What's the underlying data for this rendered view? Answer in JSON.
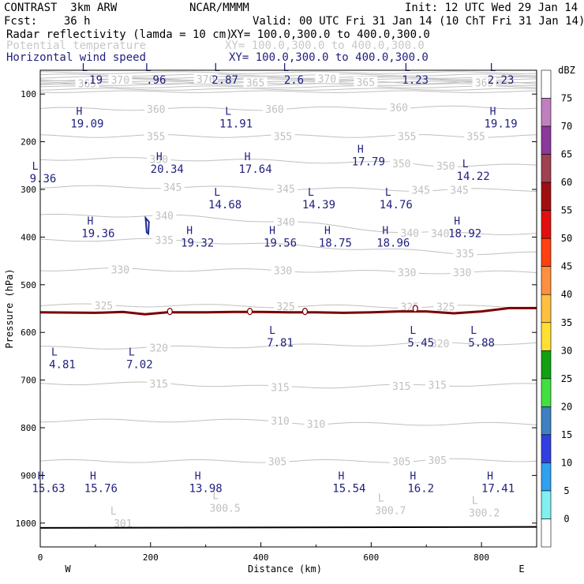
{
  "header": {
    "title_left": "CONTRAST  3km ARW",
    "source": "NCAR/MMMM",
    "init": "Init: 12 UTC Wed 29 Jan 14",
    "forecast": "Fcst:    36 h",
    "valid": "Valid: 00 UTC Fri 31 Jan 14 (10 ChT Fri 31 Jan 14)",
    "field1": "Radar reflectivity (lamda = 10 cm)",
    "field1_xy": "XY= 100.0,300.0 to 400.0,300.0",
    "field2": "Potential temperature",
    "field2_xy": "XY= 100.0,300.0 to 400.0,300.0",
    "field3": "Horizontal wind speed",
    "field3_xy": "XY= 100.0,300.0 to 400.0,300.0"
  },
  "colors": {
    "theta_contour": "#c0c0c0",
    "wind_label": "#202080",
    "freezing_line": "#7a0000",
    "ground": "#000000"
  },
  "chart_data": {
    "type": "cross-section",
    "xlabel": "Distance (km)",
    "ylabel": "Pressure (hPa)",
    "xlim": [
      0,
      900
    ],
    "ylim": [
      1050,
      50
    ],
    "x_ticks": [
      0,
      200,
      400,
      600,
      800
    ],
    "y_ticks": [
      100,
      200,
      300,
      400,
      500,
      600,
      700,
      800,
      900,
      1000
    ],
    "direction_left": "W",
    "direction_right": "E",
    "colorbar": {
      "label": "dBZ",
      "levels": [
        "75",
        "70",
        "65",
        "60",
        "55",
        "50",
        "45",
        "40",
        "35",
        "30",
        "25",
        "20",
        "15",
        "10",
        "5",
        "0"
      ],
      "colors": [
        "#ffffff",
        "#c080c0",
        "#8a3a9a",
        "#a04050",
        "#a01010",
        "#e01010",
        "#ff4010",
        "#ff9040",
        "#ffc040",
        "#ffe030",
        "#10a010",
        "#40e040",
        "#4080c0",
        "#3040e0",
        "#30a0f0",
        "#80f0f0",
        "#ffffff"
      ]
    },
    "theta_contours": [
      {
        "theta": 370,
        "labels": [
          [
            145,
            70
          ],
          [
            300,
            68
          ],
          [
            520,
            67
          ]
        ]
      },
      {
        "theta": 365,
        "labels": [
          [
            85,
            77
          ],
          [
            390,
            76
          ],
          [
            590,
            75
          ],
          [
            805,
            76
          ]
        ]
      },
      {
        "theta": 360,
        "labels": [
          [
            210,
            131
          ],
          [
            425,
            131
          ],
          [
            650,
            128
          ]
        ]
      },
      {
        "theta": 355,
        "labels": [
          [
            210,
            188
          ],
          [
            440,
            188
          ],
          [
            665,
            188
          ],
          [
            790,
            188
          ]
        ]
      },
      {
        "theta": 350,
        "labels": [
          [
            215,
            236
          ],
          [
            655,
            245
          ],
          [
            735,
            250
          ]
        ]
      },
      {
        "theta": 345,
        "labels": [
          [
            240,
            295
          ],
          [
            445,
            298
          ],
          [
            690,
            301
          ],
          [
            760,
            301
          ]
        ]
      },
      {
        "theta": 340,
        "labels": [
          [
            225,
            355
          ],
          [
            445,
            368
          ],
          [
            670,
            391
          ],
          [
            725,
            392
          ]
        ]
      },
      {
        "theta": 335,
        "labels": [
          [
            225,
            406
          ],
          [
            770,
            434
          ]
        ]
      },
      {
        "theta": 330,
        "labels": [
          [
            145,
            468
          ],
          [
            440,
            470
          ],
          [
            665,
            474
          ],
          [
            765,
            474
          ]
        ]
      },
      {
        "theta": 325,
        "labels": [
          [
            115,
            543
          ],
          [
            445,
            545
          ],
          [
            670,
            546
          ],
          [
            735,
            546
          ]
        ]
      },
      {
        "theta": 320,
        "labels": [
          [
            215,
            632
          ],
          [
            725,
            623
          ]
        ]
      },
      {
        "theta": 315,
        "labels": [
          [
            215,
            707
          ],
          [
            435,
            715
          ],
          [
            655,
            712
          ],
          [
            720,
            710
          ]
        ]
      },
      {
        "theta": 310,
        "labels": [
          [
            435,
            785
          ],
          [
            500,
            792
          ]
        ]
      },
      {
        "theta": 305,
        "labels": [
          [
            430,
            870
          ],
          [
            655,
            870
          ],
          [
            720,
            868
          ]
        ]
      }
    ],
    "theta_lows": [
      {
        "value": "300.5",
        "x": 335,
        "p": 970
      },
      {
        "value": "300.7",
        "x": 635,
        "p": 975
      },
      {
        "value": "300.2",
        "x": 805,
        "p": 980
      },
      {
        "value": "301",
        "x": 150,
        "p": 1002
      }
    ],
    "wind_extrema": [
      {
        "type": "L",
        "value": ".19",
        "x": 95,
        "p": 58
      },
      {
        "type": "L",
        "value": ".96",
        "x": 210,
        "p": 58
      },
      {
        "type": "L",
        "value": "2.87",
        "x": 335,
        "p": 58
      },
      {
        "type": "L",
        "value": "2.6",
        "x": 460,
        "p": 58
      },
      {
        "type": "L",
        "value": "1.23",
        "x": 680,
        "p": 58
      },
      {
        "type": "L",
        "value": "2.23",
        "x": 835,
        "p": 58
      },
      {
        "type": "H",
        "value": "19.09",
        "x": 85,
        "p": 150
      },
      {
        "type": "L",
        "value": "11.91",
        "x": 355,
        "p": 150
      },
      {
        "type": "H",
        "value": "19.19",
        "x": 835,
        "p": 150
      },
      {
        "type": "H",
        "value": "20.34",
        "x": 230,
        "p": 245
      },
      {
        "type": "H",
        "value": "17.64",
        "x": 390,
        "p": 245
      },
      {
        "type": "H",
        "value": "17.79",
        "x": 595,
        "p": 230
      },
      {
        "type": "L",
        "value": "9.36",
        "x": 5,
        "p": 265
      },
      {
        "type": "L",
        "value": "14.22",
        "x": 785,
        "p": 260
      },
      {
        "type": "L",
        "value": "14.68",
        "x": 335,
        "p": 320
      },
      {
        "type": "L",
        "value": "14.39",
        "x": 505,
        "p": 320
      },
      {
        "type": "L",
        "value": "14.76",
        "x": 645,
        "p": 320
      },
      {
        "type": "H",
        "value": "19.36",
        "x": 105,
        "p": 380
      },
      {
        "type": "H",
        "value": "19.32",
        "x": 285,
        "p": 400
      },
      {
        "type": "H",
        "value": "19.56",
        "x": 435,
        "p": 400
      },
      {
        "type": "H",
        "value": "18.75",
        "x": 535,
        "p": 400
      },
      {
        "type": "H",
        "value": "18.96",
        "x": 640,
        "p": 400
      },
      {
        "type": "H",
        "value": "18.92",
        "x": 770,
        "p": 380
      },
      {
        "type": "L",
        "value": "7.81",
        "x": 435,
        "p": 610
      },
      {
        "type": "L",
        "value": "5.45",
        "x": 690,
        "p": 610
      },
      {
        "type": "L",
        "value": "5.88",
        "x": 800,
        "p": 610
      },
      {
        "type": "L",
        "value": "4.81",
        "x": 40,
        "p": 655
      },
      {
        "type": "L",
        "value": "7.02",
        "x": 180,
        "p": 655
      },
      {
        "type": "H",
        "value": "15.63",
        "x": 15,
        "p": 915
      },
      {
        "type": "H",
        "value": "15.76",
        "x": 110,
        "p": 915
      },
      {
        "type": "H",
        "value": "13.98",
        "x": 300,
        "p": 915
      },
      {
        "type": "H",
        "value": "15.54",
        "x": 560,
        "p": 915
      },
      {
        "type": "H",
        "value": "16.2",
        "x": 690,
        "p": 915
      },
      {
        "type": "H",
        "value": "17.41",
        "x": 830,
        "p": 915
      }
    ],
    "freezing_level": {
      "x": [
        0,
        100,
        150,
        190,
        230,
        300,
        350,
        400,
        450,
        500,
        550,
        600,
        650,
        700,
        750,
        800,
        850,
        900
      ],
      "p": [
        558,
        559,
        557,
        562,
        558,
        558,
        557,
        557,
        558,
        558,
        559,
        558,
        556,
        556,
        560,
        556,
        549,
        549
      ],
      "markers": [
        {
          "x": 235,
          "p": 556
        },
        {
          "x": 380,
          "p": 556
        },
        {
          "x": 480,
          "p": 556
        },
        {
          "x": 680,
          "p": 550
        }
      ]
    },
    "ground_line": {
      "x": [
        0,
        900
      ],
      "p": [
        1010,
        1008
      ]
    },
    "reflectivity_outline": {
      "x": [
        191,
        197,
        196,
        193,
        191
      ],
      "p": [
        360,
        368,
        393,
        390,
        360
      ]
    }
  }
}
